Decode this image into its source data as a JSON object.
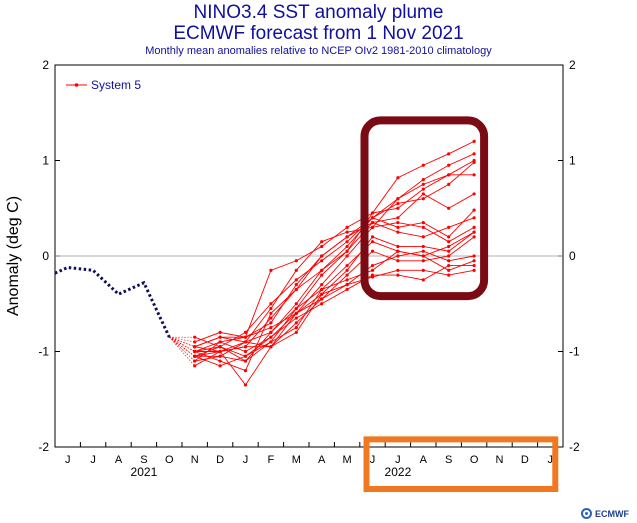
{
  "title": {
    "line1": "NINO3.4 SST anomaly plume",
    "line2": "ECMWF forecast from 1 Nov 2021",
    "subtitle": "Monthly mean anomalies relative to NCEP OIv2 1981-2010 climatology"
  },
  "brand": "ECMWF",
  "chart_data": {
    "type": "line",
    "ylabel": "Anomaly (deg C)",
    "xlabel": "",
    "ylim": [
      -2,
      2
    ],
    "yticks": [
      -2,
      -1,
      0,
      1,
      2
    ],
    "x_months": [
      "J",
      "J",
      "A",
      "S",
      "O",
      "N",
      "D",
      "J",
      "F",
      "M",
      "A",
      "M",
      "J",
      "J",
      "A",
      "S",
      "O",
      "N",
      "D",
      "J"
    ],
    "year_labels": [
      {
        "label": "2021",
        "index": 3
      },
      {
        "label": "2022",
        "index": 13
      }
    ],
    "legend": {
      "label": "System 5",
      "position": "top-left"
    },
    "colors": {
      "observed": "#10105a",
      "forecast": "#ff0000",
      "box_upper": "#7a0a14",
      "box_lower": "#f07820",
      "text": "#10109c"
    },
    "observed": {
      "name": "",
      "x": [
        -0.5,
        0,
        1,
        2,
        3,
        4
      ],
      "y": [
        -0.18,
        -0.12,
        -0.15,
        -0.4,
        -0.28,
        -0.85
      ]
    },
    "series": [
      {
        "values": [
          -1.15,
          -1.0,
          -0.95,
          -0.65,
          -0.35,
          -0.15,
          0.05,
          0.45,
          0.82,
          0.95,
          1.07,
          1.2
        ]
      },
      {
        "values": [
          -1.05,
          -0.95,
          -0.8,
          -0.5,
          -0.25,
          -0.05,
          0.15,
          0.4,
          0.6,
          0.8,
          0.95,
          1.07
        ]
      },
      {
        "values": [
          -1.0,
          -0.9,
          -0.85,
          -0.15,
          -0.05,
          0.1,
          0.3,
          0.45,
          0.5,
          0.7,
          0.85,
          1.0
        ]
      },
      {
        "values": [
          -0.95,
          -0.85,
          -0.9,
          -0.55,
          -0.15,
          0.15,
          0.25,
          0.3,
          0.6,
          0.75,
          0.85,
          0.85
        ]
      },
      {
        "values": [
          -1.0,
          -1.1,
          -1.2,
          -0.6,
          -0.35,
          0.0,
          0.2,
          0.4,
          0.55,
          0.6,
          0.75,
          0.98
        ]
      },
      {
        "values": [
          -0.9,
          -0.8,
          -0.85,
          -0.7,
          -0.3,
          0.0,
          0.2,
          0.35,
          0.4,
          0.65,
          0.5,
          0.65
        ]
      },
      {
        "values": [
          -0.85,
          -0.95,
          -1.1,
          -0.8,
          -0.5,
          -0.15,
          0.1,
          0.4,
          0.3,
          0.35,
          0.2,
          0.48
        ]
      },
      {
        "values": [
          -1.05,
          -1.15,
          -1.05,
          -0.9,
          -0.55,
          -0.2,
          0.05,
          0.35,
          0.25,
          0.2,
          0.3,
          0.4
        ]
      },
      {
        "values": [
          -0.95,
          -1.0,
          -1.35,
          -0.95,
          -0.6,
          -0.3,
          0.0,
          0.3,
          0.35,
          0.3,
          0.15,
          0.3
        ]
      },
      {
        "values": [
          -1.1,
          -1.05,
          -1.1,
          -0.9,
          -0.75,
          -0.35,
          -0.1,
          0.15,
          0.05,
          0.0,
          0.1,
          0.25
        ]
      },
      {
        "values": [
          -1.05,
          -1.0,
          -0.95,
          -0.95,
          -0.8,
          -0.4,
          -0.15,
          0.2,
          0.1,
          0.1,
          0.05,
          0.25
        ]
      },
      {
        "values": [
          -1.0,
          -0.95,
          -1.05,
          -0.85,
          -0.6,
          -0.45,
          -0.2,
          0.05,
          -0.05,
          -0.05,
          0.0,
          0.2
        ]
      },
      {
        "values": [
          -1.05,
          -1.05,
          -0.9,
          -0.95,
          -0.7,
          -0.45,
          -0.3,
          -0.1,
          0.0,
          0.05,
          -0.05,
          0.0
        ]
      },
      {
        "values": [
          -1.0,
          -1.0,
          -0.9,
          -0.8,
          -0.55,
          -0.35,
          -0.25,
          -0.15,
          0.05,
          0.0,
          -0.15,
          -0.05
        ]
      },
      {
        "values": [
          -1.1,
          -0.9,
          -1.0,
          -0.85,
          -0.65,
          -0.5,
          -0.35,
          -0.2,
          -0.2,
          -0.25,
          -0.1,
          -0.1
        ]
      },
      {
        "values": [
          -0.95,
          -0.85,
          -0.85,
          -0.75,
          -0.6,
          -0.4,
          -0.3,
          -0.22,
          -0.15,
          -0.15,
          -0.2,
          -0.15
        ]
      }
    ]
  }
}
